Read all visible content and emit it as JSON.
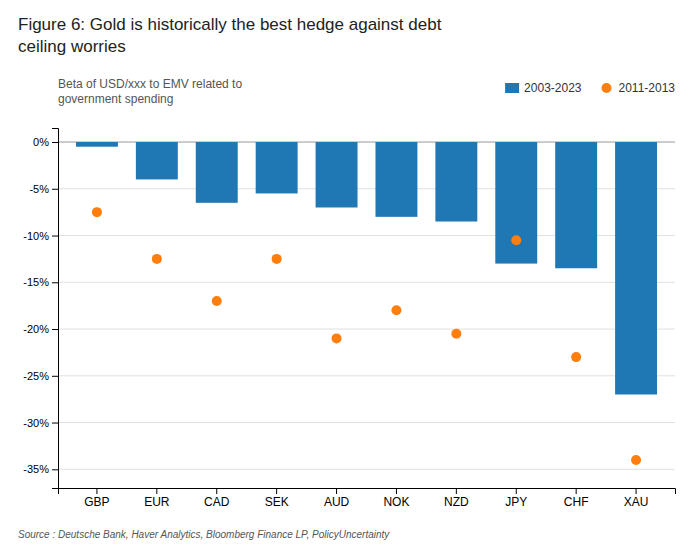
{
  "chart_data": {
    "type": "bar",
    "title": "Figure 6: Gold is historically the best hedge against debt\nceiling worries",
    "subtitle": "Beta of USD/xxx to EMV related to\ngovernment spending",
    "annotations": [
      "Source : Deutsche Bank, Haver Analytics, Bloomberg Finance LP, PolicyUncertainty"
    ],
    "categories": [
      "GBP",
      "EUR",
      "CAD",
      "SEK",
      "AUD",
      "NOK",
      "NZD",
      "JPY",
      "CHF",
      "XAU"
    ],
    "series": [
      {
        "name": "2003-2023",
        "type": "bar",
        "values": [
          -0.5,
          -4.0,
          -6.5,
          -5.5,
          -7.0,
          -8.0,
          -8.5,
          -13.0,
          -13.5,
          -27.0
        ]
      },
      {
        "name": "2011-2013",
        "type": "scatter",
        "values": [
          -7.5,
          -12.5,
          -17.0,
          -12.5,
          -21.0,
          -18.0,
          -20.5,
          -10.5,
          -23.0,
          -34.0
        ]
      }
    ],
    "ylim": [
      -37,
      1.5
    ],
    "yticks": [
      {
        "value": 0,
        "label": "0%"
      },
      {
        "value": -5,
        "label": "-5%"
      },
      {
        "value": -10,
        "label": "-10%"
      },
      {
        "value": -15,
        "label": "-15%"
      },
      {
        "value": -20,
        "label": "-20%"
      },
      {
        "value": -25,
        "label": "-25%"
      },
      {
        "value": -30,
        "label": "-30%"
      },
      {
        "value": -35,
        "label": "-35%"
      }
    ],
    "grid": true,
    "legend": "top-right"
  }
}
